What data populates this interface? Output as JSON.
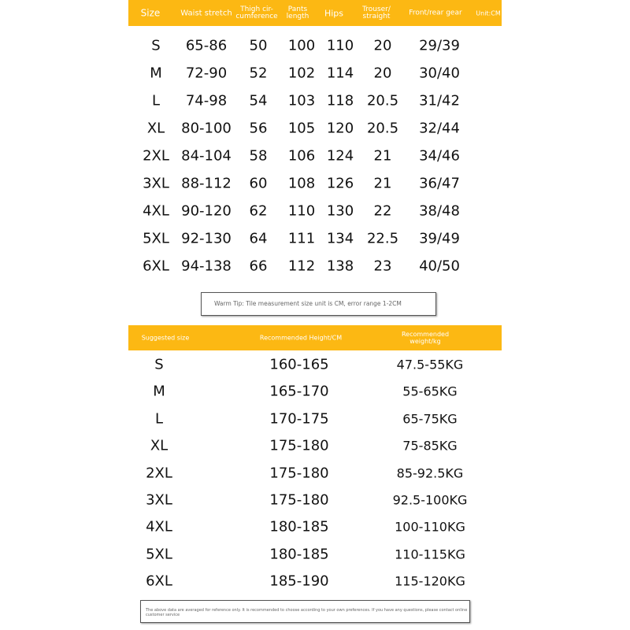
{
  "size_table": {
    "headers": [
      "Size",
      "Waist stretch",
      "Thigh cir-\ncumference",
      "Pants\nlength",
      "Hips",
      "Trouser/\nstraight",
      "Front/rear gear",
      "Unit:CM"
    ],
    "rows": [
      [
        "S",
        "65-86",
        50,
        100,
        110,
        20,
        "29/39"
      ],
      [
        "M",
        "72-90",
        52,
        102,
        114,
        20,
        "30/40"
      ],
      [
        "L",
        "74-98",
        54,
        103,
        118,
        20.5,
        "31/42"
      ],
      [
        "XL",
        "80-100",
        56,
        105,
        120,
        20.5,
        "32/44"
      ],
      [
        "2XL",
        "84-104",
        58,
        106,
        124,
        21,
        "34/46"
      ],
      [
        "3XL",
        "88-112",
        60,
        108,
        126,
        21,
        "36/47"
      ],
      [
        "4XL",
        "90-120",
        62,
        110,
        130,
        22,
        "38/48"
      ],
      [
        "5XL",
        "92-130",
        64,
        111,
        134,
        22.5,
        "39/49"
      ],
      [
        "6XL",
        "94-138",
        66,
        112,
        138,
        23,
        "40/50"
      ]
    ]
  },
  "tip": "Warm Tip: Tile measurement size unit is CM, error range 1-2CM",
  "suggest_table": {
    "headers": [
      "Suggested size",
      "Recommended Height/CM",
      "Recommended\nweight/kg"
    ],
    "rows": [
      [
        "S",
        "160-165",
        "47.5-55KG"
      ],
      [
        "M",
        "165-170",
        "55-65KG"
      ],
      [
        "L",
        "170-175",
        "65-75KG"
      ],
      [
        "XL",
        "175-180",
        "75-85KG"
      ],
      [
        "2XL",
        "175-180",
        "85-92.5KG"
      ],
      [
        "3XL",
        "175-180",
        "92.5-100KG"
      ],
      [
        "4XL",
        "180-185",
        "100-110KG"
      ],
      [
        "5XL",
        "180-185",
        "110-115KG"
      ],
      [
        "6XL",
        "185-190",
        "115-120KG"
      ]
    ]
  },
  "footer": "The above data are averaged for reference only. It is recommended to choose according to your own preferences. If you have any questions, please contact online customer service"
}
